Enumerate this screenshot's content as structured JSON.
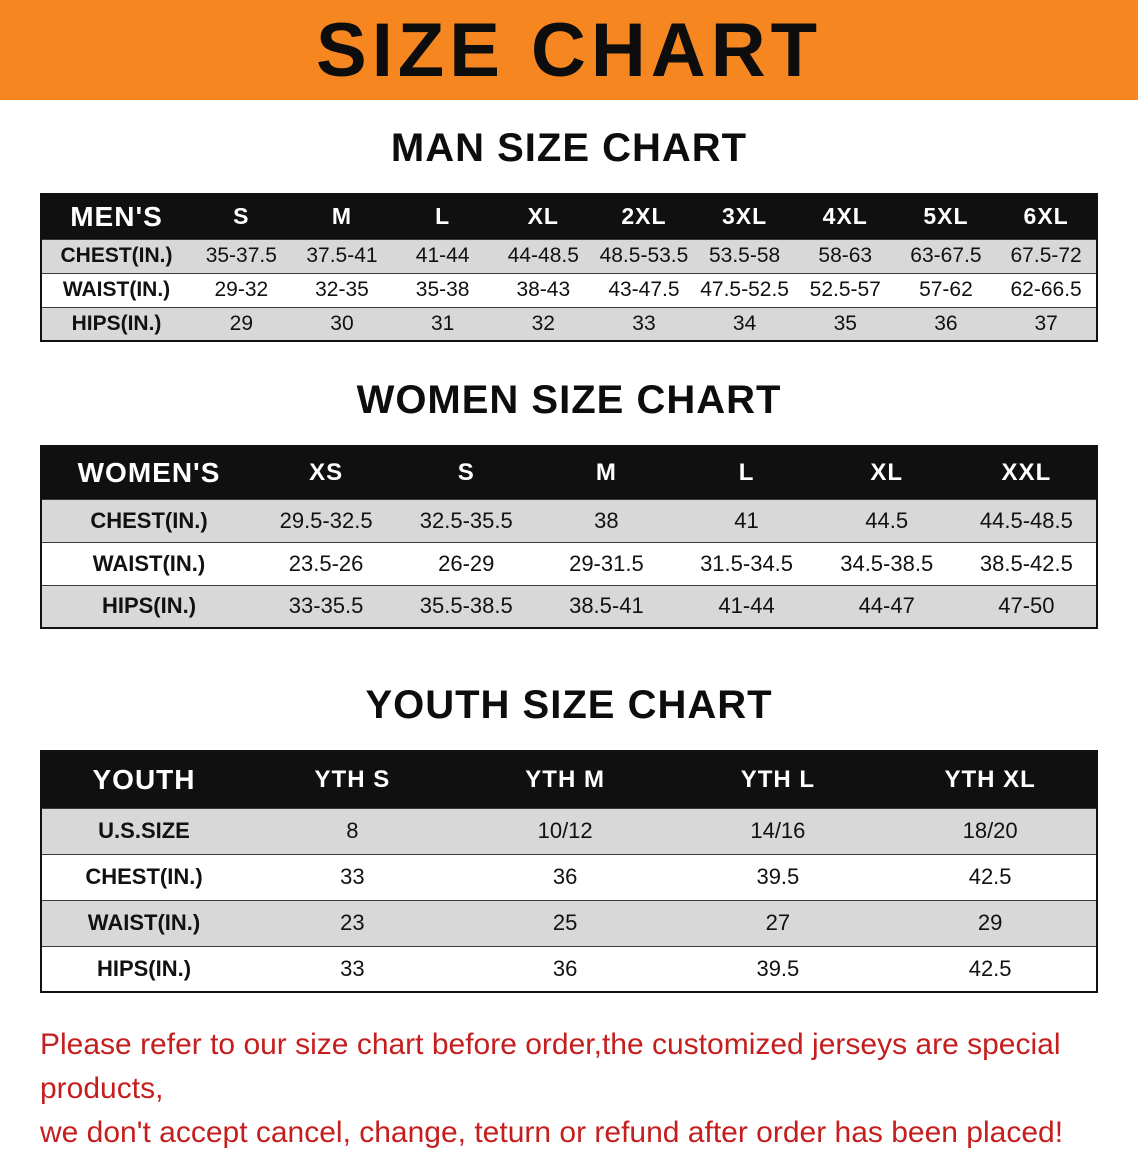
{
  "banner": {
    "title": "SIZE CHART",
    "bg_color": "#f6861f",
    "text_color": "#0d0d0d"
  },
  "sections": {
    "men": {
      "heading": "MAN SIZE CHART"
    },
    "women": {
      "heading": "WOMEN SIZE CHART"
    },
    "youth": {
      "heading": "YOUTH SIZE CHART"
    }
  },
  "tables": {
    "men": {
      "header": [
        "MEN'S",
        "S",
        "M",
        "L",
        "XL",
        "2XL",
        "3XL",
        "4XL",
        "5XL",
        "6XL"
      ],
      "rows": [
        [
          "CHEST(IN.)",
          "35-37.5",
          "37.5-41",
          "41-44",
          "44-48.5",
          "48.5-53.5",
          "53.5-58",
          "58-63",
          "63-67.5",
          "67.5-72"
        ],
        [
          "WAIST(IN.)",
          "29-32",
          "32-35",
          "35-38",
          "38-43",
          "43-47.5",
          "47.5-52.5",
          "52.5-57",
          "57-62",
          "62-66.5"
        ],
        [
          "HIPS(IN.)",
          "29",
          "30",
          "31",
          "32",
          "33",
          "34",
          "35",
          "36",
          "37"
        ]
      ]
    },
    "women": {
      "header": [
        "WOMEN'S",
        "XS",
        "S",
        "M",
        "L",
        "XL",
        "XXL"
      ],
      "rows": [
        [
          "CHEST(IN.)",
          "29.5-32.5",
          "32.5-35.5",
          "38",
          "41",
          "44.5",
          "44.5-48.5"
        ],
        [
          "WAIST(IN.)",
          "23.5-26",
          "26-29",
          "29-31.5",
          "31.5-34.5",
          "34.5-38.5",
          "38.5-42.5"
        ],
        [
          "HIPS(IN.)",
          "33-35.5",
          "35.5-38.5",
          "38.5-41",
          "41-44",
          "44-47",
          "47-50"
        ]
      ]
    },
    "youth": {
      "header": [
        "YOUTH",
        "YTH S",
        "YTH M",
        "YTH L",
        "YTH XL"
      ],
      "rows": [
        [
          "U.S.SIZE",
          "8",
          "10/12",
          "14/16",
          "18/20"
        ],
        [
          "CHEST(IN.)",
          "33",
          "36",
          "39.5",
          "42.5"
        ],
        [
          "WAIST(IN.)",
          "23",
          "25",
          "27",
          "29"
        ],
        [
          "HIPS(IN.)",
          "33",
          "36",
          "39.5",
          "42.5"
        ]
      ]
    }
  },
  "table_colors": {
    "header_row_bg": "#101010",
    "header_row_text": "#ffffff",
    "stripe_row_bg": "#d8d8d8",
    "plain_row_bg": "#ffffff"
  },
  "footer": {
    "line1": "Please refer to our size chart before order,the customized jerseys are special products,",
    "line2": "we don't accept cancel, change, teturn or refund after order has been placed!",
    "text_color": "#c41e1e"
  }
}
